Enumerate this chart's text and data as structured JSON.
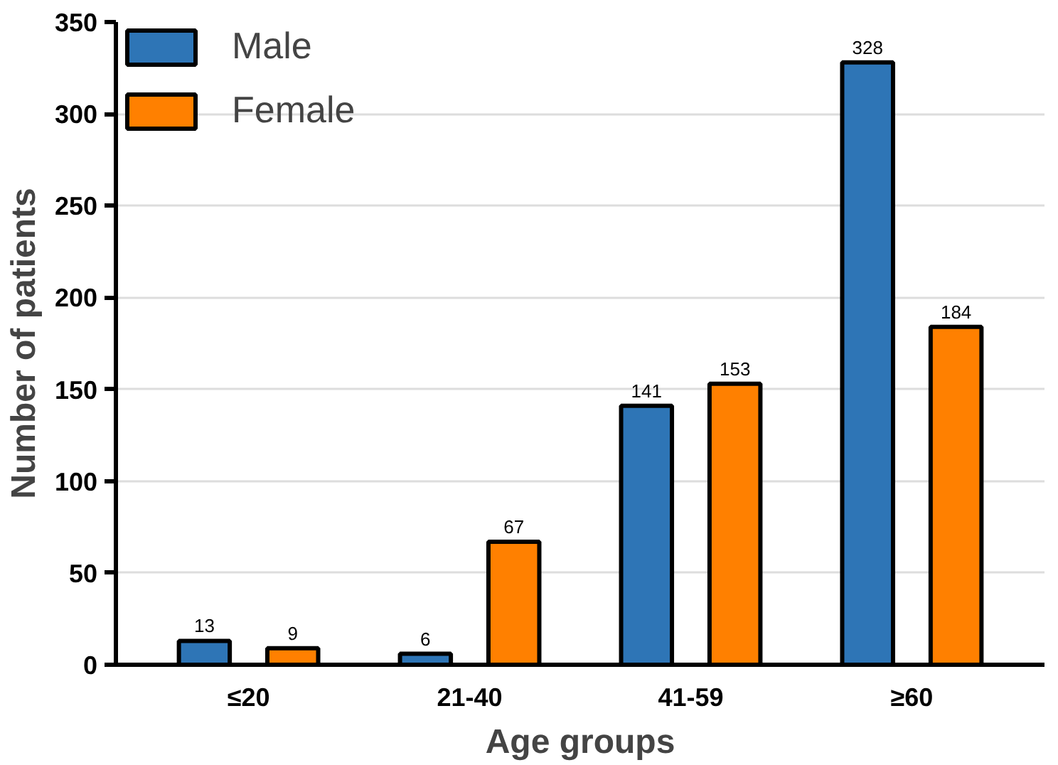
{
  "chart_data": {
    "type": "bar",
    "xlabel": "Age groups",
    "ylabel": "Number of patients",
    "categories": [
      "≤20",
      "21-40",
      "41-59",
      "≥60"
    ],
    "series": [
      {
        "name": "Male",
        "color": "#2e75b6",
        "values": [
          13,
          6,
          141,
          328
        ]
      },
      {
        "name": "Female",
        "color": "#ff8000",
        "values": [
          9,
          67,
          153,
          184
        ]
      }
    ],
    "ylim": [
      0,
      350
    ],
    "yticks": [
      0,
      50,
      100,
      150,
      200,
      250,
      300,
      350
    ],
    "grid": "y",
    "legend": "top left",
    "data_labels": true
  }
}
